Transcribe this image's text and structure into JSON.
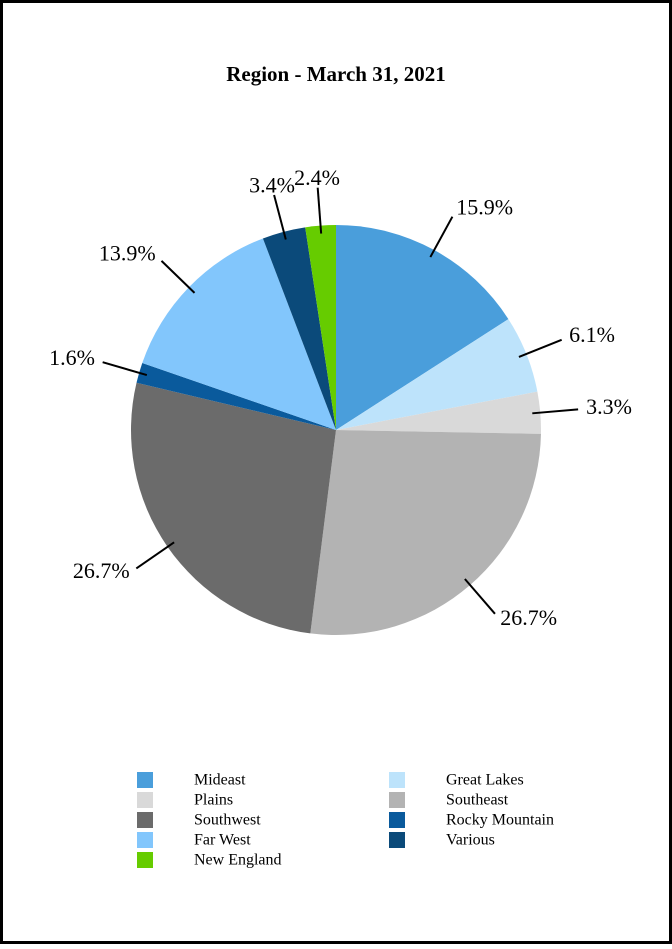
{
  "chart_data": {
    "type": "pie",
    "title": "Region - March 31, 2021",
    "categories": [
      "Mideast",
      "Great Lakes",
      "Plains",
      "Southeast",
      "Southwest",
      "Rocky Mountain",
      "Far West",
      "Various",
      "New England"
    ],
    "values": [
      15.9,
      6.1,
      3.3,
      26.7,
      26.7,
      1.6,
      13.9,
      3.4,
      2.4
    ],
    "value_labels": [
      "15.9%",
      "6.1%",
      "3.3%",
      "26.7%",
      "26.7%",
      "1.6%",
      "13.9%",
      "3.4%",
      "2.4%"
    ],
    "colors": [
      "#4a9edb",
      "#bde3fb",
      "#d9d9d9",
      "#b3b3b3",
      "#6b6b6b",
      "#0a5a9c",
      "#82c6fc",
      "#0b4a7a",
      "#66cc00"
    ]
  }
}
